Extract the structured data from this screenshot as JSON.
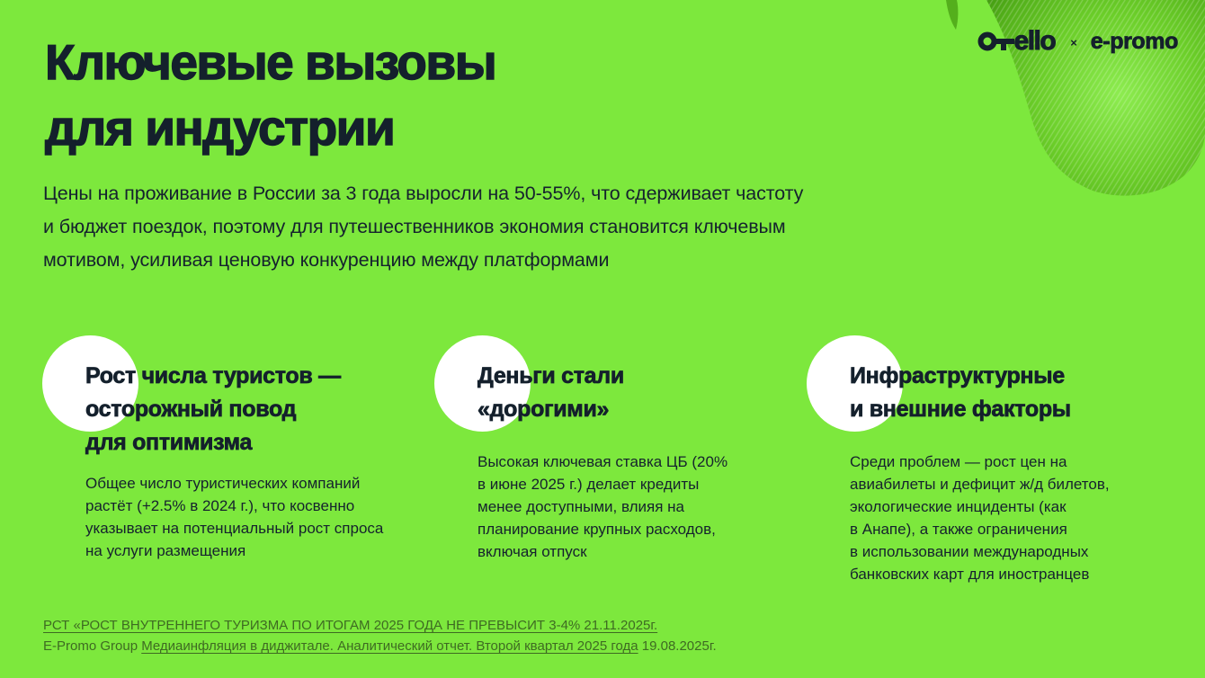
{
  "colors": {
    "background": "#7DE83D",
    "ink": "#14202C",
    "footer_text": "#3E6B22",
    "circle": "#FFFFFF",
    "blob_light": "#8DEC50",
    "blob_mid": "#6BCE29",
    "blob_dark": "#459D12"
  },
  "brand": {
    "otello_text": "ello",
    "separator": "×",
    "epromo_text": "e-promo"
  },
  "title": {
    "lines": [
      "Ключевые вызовы",
      "для индустрии"
    ]
  },
  "intro": {
    "lines": [
      "Цены на проживание в России за 3 года выросли на 50-55%, что сдерживает частоту",
      "и бюджет поездок, поэтому для путешественников экономия становится ключевым",
      "мотивом, усиливая ценовую конкуренцию между платформами"
    ]
  },
  "columns": [
    {
      "heading_lines": [
        "Рост числа туристов —",
        "осторожный повод",
        "для оптимизма"
      ],
      "body_lines": [
        "Общее число туристических компаний",
        "растёт (+2.5% в 2024 г.), что косвенно",
        "указывает на потенциальный рост спроса",
        "на услуги размещения"
      ]
    },
    {
      "heading_lines": [
        "Деньги стали",
        "«дорогими»"
      ],
      "body_lines": [
        "Высокая ключевая ставка ЦБ (20%",
        "в июне 2025 г.) делает кредиты",
        "менее доступными, влияя на",
        "планирование крупных расходов,",
        "включая отпуск"
      ]
    },
    {
      "heading_lines": [
        "Инфраструктурные",
        "и внешние факторы"
      ],
      "body_lines": [
        "Среди проблем — рост цен на",
        "авиабилеты и дефицит ж/д билетов,",
        "экологические инциденты (как",
        "в Анапе), а также ограничения",
        "в использовании международных",
        "банковских карт для иностранцев"
      ]
    }
  ],
  "footer": {
    "line1_link": "РСТ «РОСТ ВНУТРЕННЕГО ТУРИЗМА ПО ИТОГАМ 2025 ГОДА НЕ ПРЕВЫСИТ 3-4% 21.11.2025г.",
    "line2_prefix": "E-Promo Group ",
    "line2_link": "Медиаинфляция в диджитале. Аналитический отчет. Второй квартал 2025 года",
    "line2_suffix": " 19.08.2025г."
  }
}
